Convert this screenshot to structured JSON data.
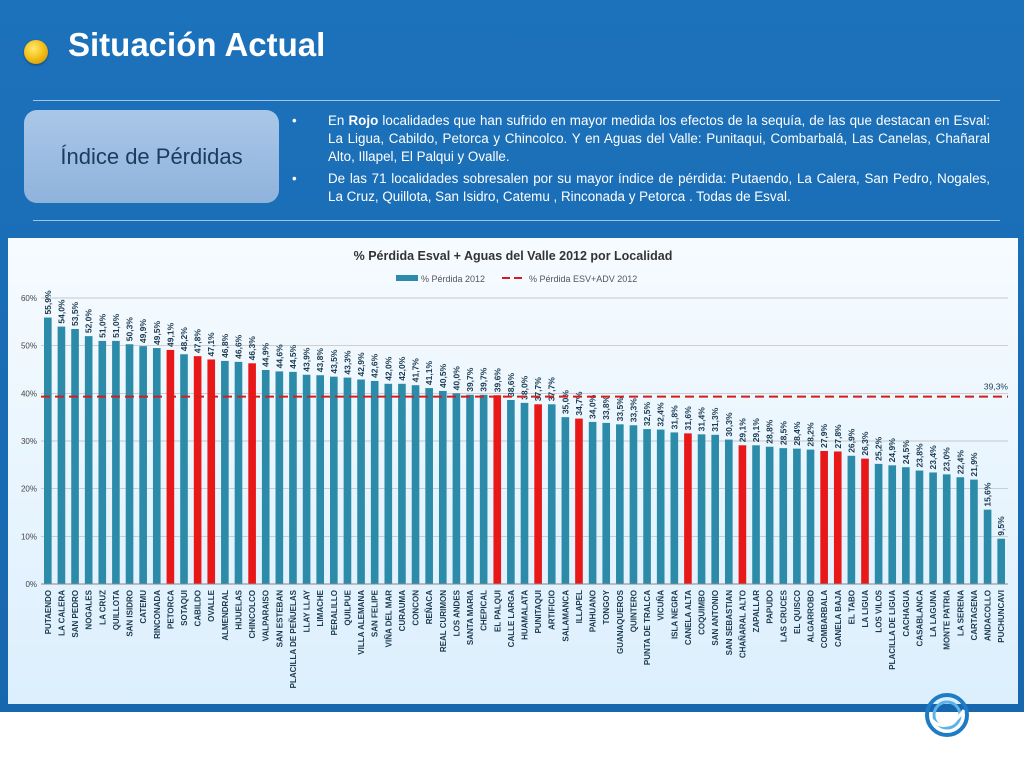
{
  "slide": {
    "title": "Situación Actual",
    "box_label": "Índice de Pérdidas",
    "bullet1": {
      "pre": "En ",
      "bold": "Rojo",
      "post": " localidades que han sufrido en mayor medida los efectos de la sequía, de las que destacan en  Esval: La Ligua, Cabildo, Petorca y Chincolco. Y en Aguas del Valle: Punitaqui, Combarbalá, Las Canelas, Chañaral Alto, Illapel, El Palqui y Ovalle."
    },
    "bullet2": "De las 71 localidades sobresalen por su mayor índice de pérdida: Putaendo, La Calera, San Pedro, Nogales, La Cruz, Quillota, San Isidro, Catemu , Rinconada y Petorca . Todas de Esval."
  },
  "colors": {
    "background": "#1a6bb3",
    "bar": "#2b8ba8",
    "bar_highlight": "#e81818",
    "average_line": "#d61d1d",
    "gridline": "#b7b7b7"
  },
  "chart_data": {
    "type": "bar",
    "title": "% Pérdida Esval + Aguas del Valle 2012 por Localidad",
    "series_name": "% Pérdida 2012",
    "average_name": "% Pérdida ESV+ADV 2012",
    "average_value": 39.3,
    "average_label": "39,3%",
    "ylim": [
      0,
      60
    ],
    "yticks": [
      "0%",
      "10%",
      "20%",
      "30%",
      "40%",
      "50%",
      "60%"
    ],
    "legend": "top",
    "grid": true,
    "categories": [
      "PUTAENDO",
      "LA CALERA",
      "SAN PEDRO",
      "NOGALES",
      "LA CRUZ",
      "QUILLOTA",
      "SAN ISIDRO",
      "CATEMU",
      "RINCONADA",
      "PETORCA",
      "SOTAQUI",
      "CABILDO",
      "OVALLE",
      "ALMENDRAL",
      "HIJUELAS",
      "CHINCOLCO",
      "VALPARAISO",
      "SAN ESTEBAN",
      "PLACILLA DE PEÑUELAS",
      "LLAY LLAY",
      "LIMACHE",
      "PERALILLO",
      "QUILPUE",
      "VILLA ALEMANA",
      "SAN FELIPE",
      "VIÑA DEL MAR",
      "CURAUMA",
      "CONCON",
      "REÑACA",
      "REAL CURIMON",
      "LOS ANDES",
      "SANTA MARIA",
      "CHEPICAL",
      "EL PALQUI",
      "CALLE LARGA",
      "HUAMALATA",
      "PUNITAQUI",
      "ARTIFICIO",
      "SALAMANCA",
      "ILLAPEL",
      "PAIHUANO",
      "TONGOY",
      "GUANAQUEROS",
      "QUINTERO",
      "PUNTA DE TRALCA",
      "VICUÑA",
      "ISLA NEGRA",
      "CANELA ALTA",
      "COQUIMBO",
      "SAN ANTONIO",
      "SAN SEBASTIAN",
      "CHAÑARAL ALTO",
      "ZAPALLAR",
      "PAPUDO",
      "LAS CRUCES",
      "EL QUISCO",
      "ALGARROBO",
      "COMBARBALA",
      "CANELA BAJA",
      "EL TABO",
      "LA LIGUA",
      "LOS VILOS",
      "PLACILLA DE LIGUA",
      "CACHAGUA",
      "CASABLANCA",
      "LA LAGUNA",
      "MONTE PATRIA",
      "LA SERENA",
      "CARTAGENA",
      "ANDACOLLO",
      "PUCHUNCAVI"
    ],
    "values": [
      55.9,
      54.0,
      53.5,
      52.0,
      51.0,
      51.0,
      50.3,
      49.9,
      49.5,
      49.1,
      48.2,
      47.8,
      47.1,
      46.8,
      46.6,
      46.3,
      44.9,
      44.6,
      44.5,
      43.9,
      43.8,
      43.5,
      43.3,
      42.9,
      42.6,
      42.0,
      42.0,
      41.7,
      41.1,
      40.5,
      40.0,
      39.7,
      39.7,
      39.6,
      38.6,
      38.0,
      37.7,
      37.7,
      35.0,
      34.7,
      34.0,
      33.8,
      33.5,
      33.3,
      32.5,
      32.4,
      31.8,
      31.6,
      31.4,
      31.3,
      30.3,
      29.1,
      29.1,
      28.8,
      28.5,
      28.4,
      28.2,
      27.9,
      27.8,
      26.9,
      26.3,
      25.2,
      24.9,
      24.5,
      23.8,
      23.4,
      23.0,
      22.4,
      21.9,
      15.6,
      9.5
    ],
    "labels": [
      "55,9%",
      "54,0%",
      "53,5%",
      "52,0%",
      "51,0%",
      "51,0%",
      "50,3%",
      "49,9%",
      "49,5%",
      "49,1%",
      "48,2%",
      "47,8%",
      "47,1%",
      "46,8%",
      "46,6%",
      "46,3%",
      "44,9%",
      "44,6%",
      "44,5%",
      "43,9%",
      "43,8%",
      "43,5%",
      "43,3%",
      "42,9%",
      "42,6%",
      "42,0%",
      "42,0%",
      "41,7%",
      "41,1%",
      "40,5%",
      "40,0%",
      "39,7%",
      "39,7%",
      "39,6%",
      "38,6%",
      "38,0%",
      "37,7%",
      "37,7%",
      "35,0%",
      "34,7%",
      "34,0%",
      "33,8%",
      "33,5%",
      "33,3%",
      "32,5%",
      "32,4%",
      "31,8%",
      "31,6%",
      "31,4%",
      "31,3%",
      "30,3%",
      "29,1%",
      "29,1%",
      "28,8%",
      "28,5%",
      "28,4%",
      "28,2%",
      "27,9%",
      "27,8%",
      "26,9%",
      "26,3%",
      "25,2%",
      "24,9%",
      "24,5%",
      "23,8%",
      "23,4%",
      "23,0%",
      "22,4%",
      "21,9%",
      "15,6%",
      "9,5%"
    ],
    "highlighted": [
      "PETORCA",
      "CABILDO",
      "OVALLE",
      "CHINCOLCO",
      "EL PALQUI",
      "PUNITAQUI",
      "ILLAPEL",
      "CANELA ALTA",
      "CHAÑARAL ALTO",
      "COMBARBALA",
      "CANELA BAJA",
      "LA LIGUA"
    ]
  }
}
